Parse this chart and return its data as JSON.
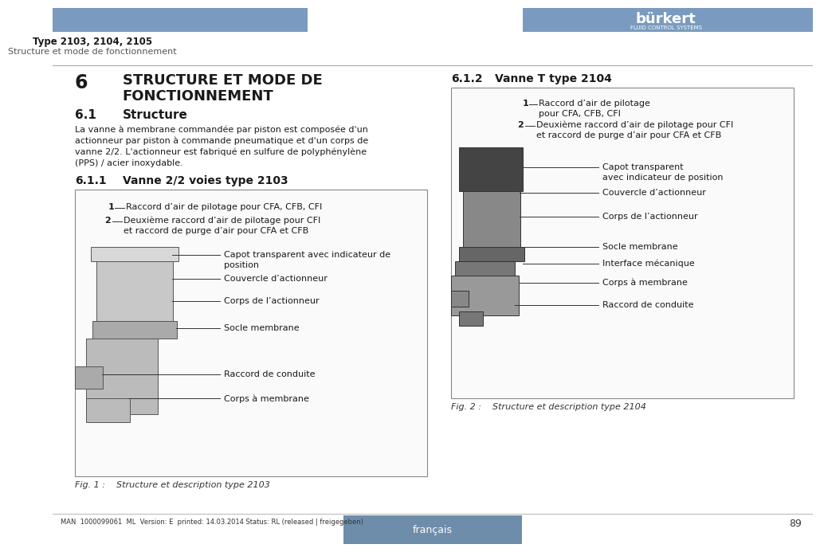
{
  "page_bg": "#ffffff",
  "header_bar_left_color": "#7a9bbf",
  "header_bar_right_color": "#7a9bbf",
  "header_type_text": "Type 2103, 2104, 2105",
  "header_subtitle": "Structure et mode de fonctionnement",
  "burkert_logo": "bürkert",
  "burkert_sub": "FLUID CONTROL SYSTEMS",
  "section_num": "6",
  "section_title1": "STRUCTURE ET MODE DE",
  "section_title2": "FONCTIONNEMENT",
  "s61_title": "6.1",
  "s61_label": "Structure",
  "body_lines": [
    "La vanne à membrane commandée par piston est composée d'un",
    "actionneur par piston à commande pneumatique et d'un corps de",
    "vanne 2/2. L'actionneur est fabriqué en sulfure de polyphénylène",
    "(PPS) / acier inoxydable."
  ],
  "s611_title": "6.1.1",
  "s611_label": "Vanne 2/2 voies type 2103",
  "s612_title": "6.1.2",
  "s612_label": "Vanne T type 2104",
  "fig1_num": "1",
  "fig1_label1_num": "1",
  "fig1_label1_text": "Raccord d’air de pilotage pour CFA, CFB, CFI",
  "fig1_label2_num": "2",
  "fig1_label2_text1": "Deuxième raccord d’air de pilotage pour CFI",
  "fig1_label2_text2": "et raccord de purge d’air pour CFA et CFB",
  "fig1_label3_text1": "Capot transparent avec indicateur de",
  "fig1_label3_text2": "position",
  "fig1_label4_text": "Couvercle d’actionneur",
  "fig1_label5_text": "Corps de l’actionneur",
  "fig1_label6_text": "Socle membrane",
  "fig1_label7_text": "Raccord de conduite",
  "fig1_label8_text": "Corps à membrane",
  "fig1_caption": "Fig. 1 :    Structure et description type 2103",
  "fig2_label1_num": "1",
  "fig2_label1_text1": "Raccord d’air de pilotage",
  "fig2_label1_text2": "pour CFA, CFB, CFI",
  "fig2_label2_num": "2",
  "fig2_label2_text1": "Deuxième raccord d’air de pilotage pour CFI",
  "fig2_label2_text2": "et raccord de purge d’air pour CFA et CFB",
  "fig2_label3_text1": "Capot transparent",
  "fig2_label3_text2": "avec indicateur de position",
  "fig2_label4_text": "Couvercle d’actionneur",
  "fig2_label5_text": "Corps de l’actionneur",
  "fig2_label6_text": "Socle membrane",
  "fig2_label7_text": "Interface mécanique",
  "fig2_label8_text": "Corps à membrane",
  "fig2_label9_text": "Raccord de conduite",
  "fig2_caption": "Fig. 2 :    Structure et description type 2104",
  "footer_text": "MAN  1000099061  ML  Version: E  printed: 14.03.2014 Status: RL (released | freigegeben)",
  "footer_lang": "français",
  "footer_page": "89",
  "footer_bar_color": "#6e8dab",
  "line_color": "#cccccc",
  "text_dark": "#1a1a1a",
  "text_gray": "#555555",
  "line_color2": "#888888"
}
